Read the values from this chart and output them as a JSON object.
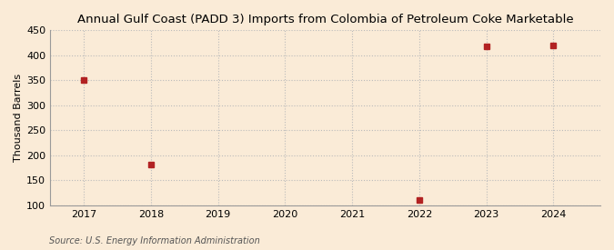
{
  "title": "Annual Gulf Coast (PADD 3) Imports from Colombia of Petroleum Coke Marketable",
  "ylabel": "Thousand Barrels",
  "source": "Source: U.S. Energy Information Administration",
  "background_color": "#faebd7",
  "plot_bg_color": "#faebd7",
  "x_data": [
    2017,
    2018,
    2022,
    2023,
    2024
  ],
  "y_data": [
    350,
    181,
    110,
    418,
    420
  ],
  "marker_color": "#b22222",
  "marker_size": 4,
  "xlim": [
    2016.5,
    2024.7
  ],
  "ylim": [
    100,
    450
  ],
  "yticks": [
    100,
    150,
    200,
    250,
    300,
    350,
    400,
    450
  ],
  "xticks": [
    2017,
    2018,
    2019,
    2020,
    2021,
    2022,
    2023,
    2024
  ],
  "title_fontsize": 9.5,
  "label_fontsize": 8,
  "tick_fontsize": 8,
  "source_fontsize": 7,
  "grid_color": "#bbbbbb",
  "spine_color": "#999999"
}
